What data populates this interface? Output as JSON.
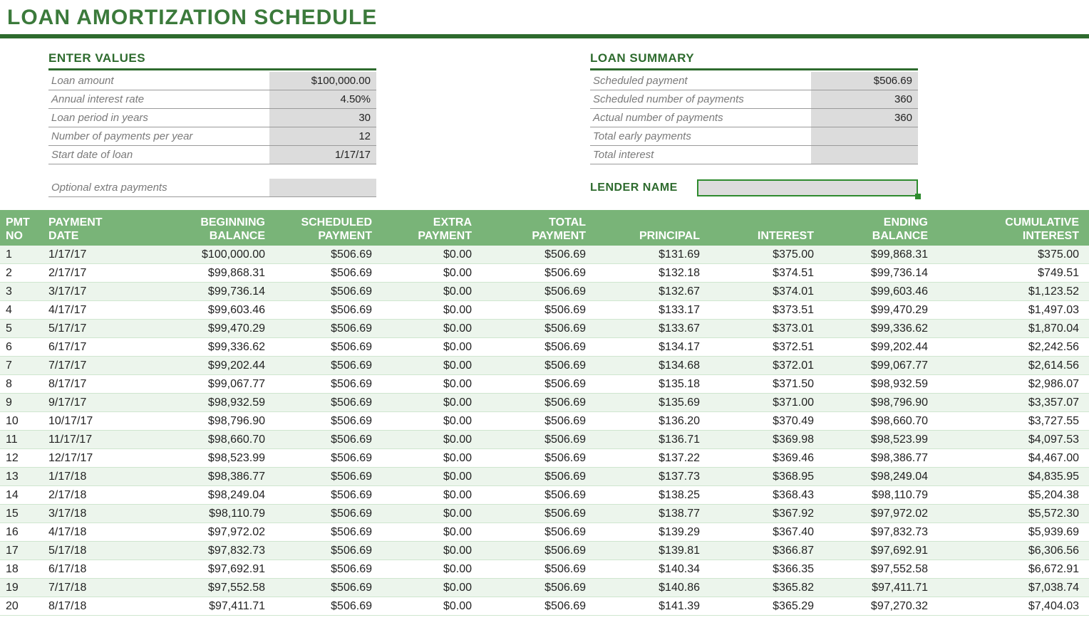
{
  "title": "LOAN AMORTIZATION SCHEDULE",
  "colors": {
    "brand_green": "#2e6b2e",
    "header_green": "#79b478",
    "row_tint": "#ecf5ec",
    "grey_fill": "#dcdcdc",
    "label_grey": "#7a7a7a",
    "cell_border": "#2e8b2e"
  },
  "enter_values": {
    "heading": "ENTER VALUES",
    "rows": [
      {
        "label": "Loan amount",
        "value": "$100,000.00"
      },
      {
        "label": "Annual interest rate",
        "value": "4.50%"
      },
      {
        "label": "Loan period in years",
        "value": "30"
      },
      {
        "label": "Number of payments per year",
        "value": "12"
      },
      {
        "label": "Start date of loan",
        "value": "1/17/17"
      }
    ],
    "extra": {
      "label": "Optional extra payments",
      "value": ""
    }
  },
  "loan_summary": {
    "heading": "LOAN SUMMARY",
    "rows": [
      {
        "label": "Scheduled payment",
        "value": "$506.69"
      },
      {
        "label": "Scheduled number of payments",
        "value": "360"
      },
      {
        "label": "Actual number of payments",
        "value": "360"
      },
      {
        "label": "Total early payments",
        "value": ""
      },
      {
        "label": "Total interest",
        "value": ""
      }
    ],
    "lender_label": "LENDER NAME",
    "lender_value": ""
  },
  "schedule": {
    "columns": [
      "PMT\nNO",
      "PAYMENT\nDATE",
      "BEGINNING\nBALANCE",
      "SCHEDULED\nPAYMENT",
      "EXTRA\nPAYMENT",
      "TOTAL\nPAYMENT",
      "PRINCIPAL",
      "INTEREST",
      "ENDING\nBALANCE",
      "CUMULATIVE\nINTEREST"
    ],
    "rows": [
      [
        "1",
        "1/17/17",
        "$100,000.00",
        "$506.69",
        "$0.00",
        "$506.69",
        "$131.69",
        "$375.00",
        "$99,868.31",
        "$375.00"
      ],
      [
        "2",
        "2/17/17",
        "$99,868.31",
        "$506.69",
        "$0.00",
        "$506.69",
        "$132.18",
        "$374.51",
        "$99,736.14",
        "$749.51"
      ],
      [
        "3",
        "3/17/17",
        "$99,736.14",
        "$506.69",
        "$0.00",
        "$506.69",
        "$132.67",
        "$374.01",
        "$99,603.46",
        "$1,123.52"
      ],
      [
        "4",
        "4/17/17",
        "$99,603.46",
        "$506.69",
        "$0.00",
        "$506.69",
        "$133.17",
        "$373.51",
        "$99,470.29",
        "$1,497.03"
      ],
      [
        "5",
        "5/17/17",
        "$99,470.29",
        "$506.69",
        "$0.00",
        "$506.69",
        "$133.67",
        "$373.01",
        "$99,336.62",
        "$1,870.04"
      ],
      [
        "6",
        "6/17/17",
        "$99,336.62",
        "$506.69",
        "$0.00",
        "$506.69",
        "$134.17",
        "$372.51",
        "$99,202.44",
        "$2,242.56"
      ],
      [
        "7",
        "7/17/17",
        "$99,202.44",
        "$506.69",
        "$0.00",
        "$506.69",
        "$134.68",
        "$372.01",
        "$99,067.77",
        "$2,614.56"
      ],
      [
        "8",
        "8/17/17",
        "$99,067.77",
        "$506.69",
        "$0.00",
        "$506.69",
        "$135.18",
        "$371.50",
        "$98,932.59",
        "$2,986.07"
      ],
      [
        "9",
        "9/17/17",
        "$98,932.59",
        "$506.69",
        "$0.00",
        "$506.69",
        "$135.69",
        "$371.00",
        "$98,796.90",
        "$3,357.07"
      ],
      [
        "10",
        "10/17/17",
        "$98,796.90",
        "$506.69",
        "$0.00",
        "$506.69",
        "$136.20",
        "$370.49",
        "$98,660.70",
        "$3,727.55"
      ],
      [
        "11",
        "11/17/17",
        "$98,660.70",
        "$506.69",
        "$0.00",
        "$506.69",
        "$136.71",
        "$369.98",
        "$98,523.99",
        "$4,097.53"
      ],
      [
        "12",
        "12/17/17",
        "$98,523.99",
        "$506.69",
        "$0.00",
        "$506.69",
        "$137.22",
        "$369.46",
        "$98,386.77",
        "$4,467.00"
      ],
      [
        "13",
        "1/17/18",
        "$98,386.77",
        "$506.69",
        "$0.00",
        "$506.69",
        "$137.73",
        "$368.95",
        "$98,249.04",
        "$4,835.95"
      ],
      [
        "14",
        "2/17/18",
        "$98,249.04",
        "$506.69",
        "$0.00",
        "$506.69",
        "$138.25",
        "$368.43",
        "$98,110.79",
        "$5,204.38"
      ],
      [
        "15",
        "3/17/18",
        "$98,110.79",
        "$506.69",
        "$0.00",
        "$506.69",
        "$138.77",
        "$367.92",
        "$97,972.02",
        "$5,572.30"
      ],
      [
        "16",
        "4/17/18",
        "$97,972.02",
        "$506.69",
        "$0.00",
        "$506.69",
        "$139.29",
        "$367.40",
        "$97,832.73",
        "$5,939.69"
      ],
      [
        "17",
        "5/17/18",
        "$97,832.73",
        "$506.69",
        "$0.00",
        "$506.69",
        "$139.81",
        "$366.87",
        "$97,692.91",
        "$6,306.56"
      ],
      [
        "18",
        "6/17/18",
        "$97,692.91",
        "$506.69",
        "$0.00",
        "$506.69",
        "$140.34",
        "$366.35",
        "$97,552.58",
        "$6,672.91"
      ],
      [
        "19",
        "7/17/18",
        "$97,552.58",
        "$506.69",
        "$0.00",
        "$506.69",
        "$140.86",
        "$365.82",
        "$97,411.71",
        "$7,038.74"
      ],
      [
        "20",
        "8/17/18",
        "$97,411.71",
        "$506.69",
        "$0.00",
        "$506.69",
        "$141.39",
        "$365.29",
        "$97,270.32",
        "$7,404.03"
      ]
    ]
  }
}
